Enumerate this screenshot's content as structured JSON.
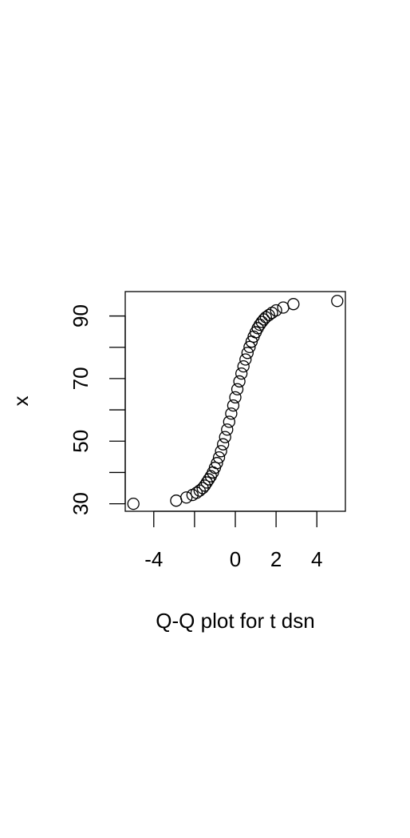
{
  "chart_data": {
    "type": "scatter",
    "title": "",
    "xlabel": "Q-Q plot for t dsn",
    "ylabel": "x",
    "xlim": [
      -5.4,
      5.4
    ],
    "ylim": [
      27.6,
      97.8
    ],
    "x_ticks": [
      -4,
      -2,
      0,
      2,
      4
    ],
    "x_tick_labels": [
      "-4",
      "",
      "0",
      "2",
      "4"
    ],
    "y_ticks": [
      30,
      40,
      50,
      60,
      70,
      80,
      90
    ],
    "y_tick_labels": [
      "30",
      "",
      "50",
      "",
      "70",
      "",
      "90"
    ],
    "grid": false,
    "marker": "open-circle",
    "series": [
      {
        "x": [
          -5.0,
          -2.9,
          -2.4,
          -2.1,
          -1.9,
          -1.75,
          -1.6,
          -1.5,
          -1.4,
          -1.3,
          -1.2,
          -1.1,
          -1.0,
          -0.9,
          -0.8,
          -0.7,
          -0.6,
          -0.5,
          -0.4,
          -0.3,
          -0.2,
          -0.1,
          0.0,
          0.1,
          0.2,
          0.3,
          0.4,
          0.5,
          0.6,
          0.7,
          0.8,
          0.9,
          1.0,
          1.1,
          1.2,
          1.3,
          1.4,
          1.5,
          1.65,
          1.8,
          2.0,
          2.35,
          2.85,
          5.0
        ],
        "y": [
          30.0,
          31.0,
          32.0,
          32.8,
          33.5,
          34.2,
          35.0,
          35.8,
          36.8,
          37.8,
          38.8,
          40.0,
          41.5,
          43.0,
          44.8,
          46.8,
          49.0,
          51.3,
          53.7,
          56.2,
          58.8,
          61.4,
          64.0,
          66.6,
          69.1,
          71.6,
          73.9,
          76.1,
          78.2,
          80.1,
          81.8,
          83.4,
          84.8,
          86.1,
          87.2,
          88.1,
          88.9,
          89.6,
          90.3,
          91.0,
          91.8,
          92.7,
          93.8,
          94.8
        ]
      }
    ]
  }
}
